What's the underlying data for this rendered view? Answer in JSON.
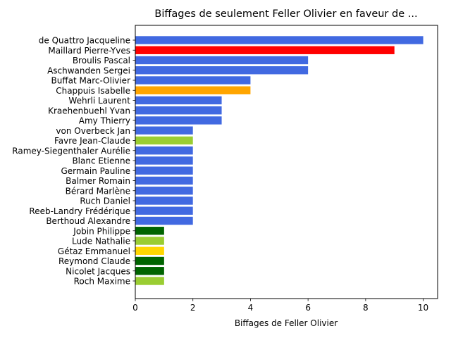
{
  "chart_data": {
    "type": "bar",
    "orientation": "horizontal",
    "title": "Biffages de seulement Feller Olivier en faveur de ...",
    "xlabel": "Biffages de Feller Olivier",
    "ylabel": "",
    "xlim": [
      0,
      10.5
    ],
    "xticks": [
      0,
      2,
      4,
      6,
      8,
      10
    ],
    "grid": false,
    "categories": [
      "de Quattro Jacqueline",
      "Maillard Pierre-Yves",
      "Broulis Pascal",
      "Aschwanden Sergei",
      "Buffat Marc-Olivier",
      "Chappuis Isabelle",
      "Wehrli Laurent",
      "Kraehenbuehl Yvan",
      "Amy Thierry",
      "von Overbeck Jan",
      "Favre Jean-Claude",
      "Ramey-Siegenthaler Aurélie",
      "Blanc Etienne",
      "Germain Pauline",
      "Balmer Romain",
      "Bérard Marlène",
      "Ruch Daniel",
      "Reeb-Landry Frédérique",
      "Berthoud Alexandre",
      "Jobin Philippe",
      "Lude Nathalie",
      "Gétaz Emmanuel",
      "Reymond Claude",
      "Nicolet Jacques",
      "Roch Maxime"
    ],
    "values": [
      10,
      9,
      6,
      6,
      4,
      4,
      3,
      3,
      3,
      2,
      2,
      2,
      2,
      2,
      2,
      2,
      2,
      2,
      2,
      1,
      1,
      1,
      1,
      1,
      1
    ],
    "colors": [
      "#4169e1",
      "#ff0000",
      "#4169e1",
      "#4169e1",
      "#4169e1",
      "#ffa500",
      "#4169e1",
      "#4169e1",
      "#4169e1",
      "#4169e1",
      "#9acd32",
      "#4169e1",
      "#4169e1",
      "#4169e1",
      "#4169e1",
      "#4169e1",
      "#4169e1",
      "#4169e1",
      "#4169e1",
      "#006400",
      "#9acd32",
      "#ffd700",
      "#006400",
      "#006400",
      "#9acd32"
    ]
  }
}
